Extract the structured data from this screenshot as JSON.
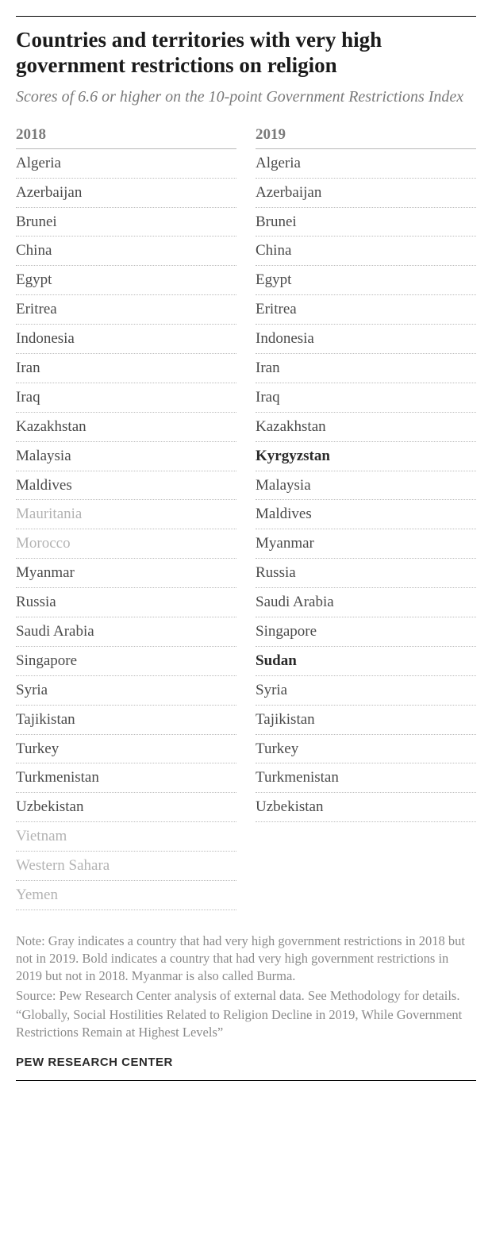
{
  "title": "Countries and territories with very high government restrictions on religion",
  "subtitle": "Scores of 6.6 or higher on the 10-point Government Restrictions Index",
  "text_colors": {
    "title": "#1a1a1a",
    "subtitle": "#7a7a7a",
    "header": "#7a7a7a",
    "normal": "#4a4a4a",
    "gray": "#b3b3b3",
    "bold": "#2a2a2a",
    "notes": "#8a8a8a",
    "org": "#2a2a2a"
  },
  "background_color": "#ffffff",
  "rule_color": "#000000",
  "divider_color": "#b8b8b8",
  "dotted_color": "#bcbcbc",
  "fontsize": {
    "title": 27,
    "subtitle": 20,
    "header": 19,
    "row": 19,
    "notes": 16.5,
    "org": 15
  },
  "columns": [
    {
      "header": "2018",
      "items": [
        {
          "label": "Algeria",
          "style": "normal"
        },
        {
          "label": "Azerbaijan",
          "style": "normal"
        },
        {
          "label": "Brunei",
          "style": "normal"
        },
        {
          "label": "China",
          "style": "normal"
        },
        {
          "label": "Egypt",
          "style": "normal"
        },
        {
          "label": "Eritrea",
          "style": "normal"
        },
        {
          "label": "Indonesia",
          "style": "normal"
        },
        {
          "label": "Iran",
          "style": "normal"
        },
        {
          "label": "Iraq",
          "style": "normal"
        },
        {
          "label": "Kazakhstan",
          "style": "normal"
        },
        {
          "label": "Malaysia",
          "style": "normal"
        },
        {
          "label": "Maldives",
          "style": "normal"
        },
        {
          "label": "Mauritania",
          "style": "gray"
        },
        {
          "label": "Morocco",
          "style": "gray"
        },
        {
          "label": "Myanmar",
          "style": "normal"
        },
        {
          "label": "Russia",
          "style": "normal"
        },
        {
          "label": "Saudi Arabia",
          "style": "normal"
        },
        {
          "label": "Singapore",
          "style": "normal"
        },
        {
          "label": "Syria",
          "style": "normal"
        },
        {
          "label": "Tajikistan",
          "style": "normal"
        },
        {
          "label": "Turkey",
          "style": "normal"
        },
        {
          "label": "Turkmenistan",
          "style": "normal"
        },
        {
          "label": "Uzbekistan",
          "style": "normal"
        },
        {
          "label": "Vietnam",
          "style": "gray"
        },
        {
          "label": "Western Sahara",
          "style": "gray"
        },
        {
          "label": "Yemen",
          "style": "gray"
        }
      ]
    },
    {
      "header": "2019",
      "items": [
        {
          "label": "Algeria",
          "style": "normal"
        },
        {
          "label": "Azerbaijan",
          "style": "normal"
        },
        {
          "label": "Brunei",
          "style": "normal"
        },
        {
          "label": "China",
          "style": "normal"
        },
        {
          "label": "Egypt",
          "style": "normal"
        },
        {
          "label": "Eritrea",
          "style": "normal"
        },
        {
          "label": "Indonesia",
          "style": "normal"
        },
        {
          "label": "Iran",
          "style": "normal"
        },
        {
          "label": "Iraq",
          "style": "normal"
        },
        {
          "label": "Kazakhstan",
          "style": "normal"
        },
        {
          "label": "Kyrgyzstan",
          "style": "bold"
        },
        {
          "label": "Malaysia",
          "style": "normal"
        },
        {
          "label": "Maldives",
          "style": "normal"
        },
        {
          "label": "Myanmar",
          "style": "normal"
        },
        {
          "label": "Russia",
          "style": "normal"
        },
        {
          "label": "Saudi Arabia",
          "style": "normal"
        },
        {
          "label": "Singapore",
          "style": "normal"
        },
        {
          "label": "Sudan",
          "style": "bold"
        },
        {
          "label": "Syria",
          "style": "normal"
        },
        {
          "label": "Tajikistan",
          "style": "normal"
        },
        {
          "label": "Turkey",
          "style": "normal"
        },
        {
          "label": "Turkmenistan",
          "style": "normal"
        },
        {
          "label": "Uzbekistan",
          "style": "normal"
        }
      ]
    }
  ],
  "notes": [
    "Note: Gray indicates a country that had very high government restrictions in 2018 but not in 2019. Bold indicates a country that had very high government restrictions in 2019 but not in 2018. Myanmar is also called Burma.",
    "Source: Pew Research Center analysis of external data. See Methodology for details.",
    "“Globally, Social Hostilities Related to Religion Decline in 2019, While Government Restrictions Remain at Highest Levels”"
  ],
  "org": "PEW RESEARCH CENTER"
}
